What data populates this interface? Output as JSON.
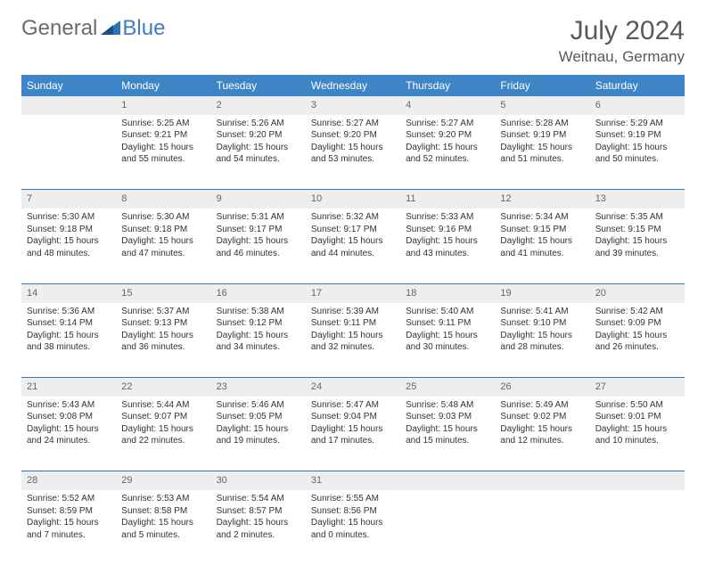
{
  "brand": {
    "part1": "General",
    "part2": "Blue"
  },
  "title": "July 2024",
  "location": "Weitnau, Germany",
  "colors": {
    "header_bg": "#3d85c6",
    "header_fg": "#ffffff",
    "daynum_bg": "#eeeeee",
    "row_divider": "#2e75b6",
    "text": "#333333",
    "muted": "#595959"
  },
  "weekdays": [
    "Sunday",
    "Monday",
    "Tuesday",
    "Wednesday",
    "Thursday",
    "Friday",
    "Saturday"
  ],
  "weeks": [
    {
      "nums": [
        "",
        "1",
        "2",
        "3",
        "4",
        "5",
        "6"
      ],
      "cells": [
        null,
        {
          "sr": "Sunrise: 5:25 AM",
          "ss": "Sunset: 9:21 PM",
          "d1": "Daylight: 15 hours",
          "d2": "and 55 minutes."
        },
        {
          "sr": "Sunrise: 5:26 AM",
          "ss": "Sunset: 9:20 PM",
          "d1": "Daylight: 15 hours",
          "d2": "and 54 minutes."
        },
        {
          "sr": "Sunrise: 5:27 AM",
          "ss": "Sunset: 9:20 PM",
          "d1": "Daylight: 15 hours",
          "d2": "and 53 minutes."
        },
        {
          "sr": "Sunrise: 5:27 AM",
          "ss": "Sunset: 9:20 PM",
          "d1": "Daylight: 15 hours",
          "d2": "and 52 minutes."
        },
        {
          "sr": "Sunrise: 5:28 AM",
          "ss": "Sunset: 9:19 PM",
          "d1": "Daylight: 15 hours",
          "d2": "and 51 minutes."
        },
        {
          "sr": "Sunrise: 5:29 AM",
          "ss": "Sunset: 9:19 PM",
          "d1": "Daylight: 15 hours",
          "d2": "and 50 minutes."
        }
      ]
    },
    {
      "nums": [
        "7",
        "8",
        "9",
        "10",
        "11",
        "12",
        "13"
      ],
      "cells": [
        {
          "sr": "Sunrise: 5:30 AM",
          "ss": "Sunset: 9:18 PM",
          "d1": "Daylight: 15 hours",
          "d2": "and 48 minutes."
        },
        {
          "sr": "Sunrise: 5:30 AM",
          "ss": "Sunset: 9:18 PM",
          "d1": "Daylight: 15 hours",
          "d2": "and 47 minutes."
        },
        {
          "sr": "Sunrise: 5:31 AM",
          "ss": "Sunset: 9:17 PM",
          "d1": "Daylight: 15 hours",
          "d2": "and 46 minutes."
        },
        {
          "sr": "Sunrise: 5:32 AM",
          "ss": "Sunset: 9:17 PM",
          "d1": "Daylight: 15 hours",
          "d2": "and 44 minutes."
        },
        {
          "sr": "Sunrise: 5:33 AM",
          "ss": "Sunset: 9:16 PM",
          "d1": "Daylight: 15 hours",
          "d2": "and 43 minutes."
        },
        {
          "sr": "Sunrise: 5:34 AM",
          "ss": "Sunset: 9:15 PM",
          "d1": "Daylight: 15 hours",
          "d2": "and 41 minutes."
        },
        {
          "sr": "Sunrise: 5:35 AM",
          "ss": "Sunset: 9:15 PM",
          "d1": "Daylight: 15 hours",
          "d2": "and 39 minutes."
        }
      ]
    },
    {
      "nums": [
        "14",
        "15",
        "16",
        "17",
        "18",
        "19",
        "20"
      ],
      "cells": [
        {
          "sr": "Sunrise: 5:36 AM",
          "ss": "Sunset: 9:14 PM",
          "d1": "Daylight: 15 hours",
          "d2": "and 38 minutes."
        },
        {
          "sr": "Sunrise: 5:37 AM",
          "ss": "Sunset: 9:13 PM",
          "d1": "Daylight: 15 hours",
          "d2": "and 36 minutes."
        },
        {
          "sr": "Sunrise: 5:38 AM",
          "ss": "Sunset: 9:12 PM",
          "d1": "Daylight: 15 hours",
          "d2": "and 34 minutes."
        },
        {
          "sr": "Sunrise: 5:39 AM",
          "ss": "Sunset: 9:11 PM",
          "d1": "Daylight: 15 hours",
          "d2": "and 32 minutes."
        },
        {
          "sr": "Sunrise: 5:40 AM",
          "ss": "Sunset: 9:11 PM",
          "d1": "Daylight: 15 hours",
          "d2": "and 30 minutes."
        },
        {
          "sr": "Sunrise: 5:41 AM",
          "ss": "Sunset: 9:10 PM",
          "d1": "Daylight: 15 hours",
          "d2": "and 28 minutes."
        },
        {
          "sr": "Sunrise: 5:42 AM",
          "ss": "Sunset: 9:09 PM",
          "d1": "Daylight: 15 hours",
          "d2": "and 26 minutes."
        }
      ]
    },
    {
      "nums": [
        "21",
        "22",
        "23",
        "24",
        "25",
        "26",
        "27"
      ],
      "cells": [
        {
          "sr": "Sunrise: 5:43 AM",
          "ss": "Sunset: 9:08 PM",
          "d1": "Daylight: 15 hours",
          "d2": "and 24 minutes."
        },
        {
          "sr": "Sunrise: 5:44 AM",
          "ss": "Sunset: 9:07 PM",
          "d1": "Daylight: 15 hours",
          "d2": "and 22 minutes."
        },
        {
          "sr": "Sunrise: 5:46 AM",
          "ss": "Sunset: 9:05 PM",
          "d1": "Daylight: 15 hours",
          "d2": "and 19 minutes."
        },
        {
          "sr": "Sunrise: 5:47 AM",
          "ss": "Sunset: 9:04 PM",
          "d1": "Daylight: 15 hours",
          "d2": "and 17 minutes."
        },
        {
          "sr": "Sunrise: 5:48 AM",
          "ss": "Sunset: 9:03 PM",
          "d1": "Daylight: 15 hours",
          "d2": "and 15 minutes."
        },
        {
          "sr": "Sunrise: 5:49 AM",
          "ss": "Sunset: 9:02 PM",
          "d1": "Daylight: 15 hours",
          "d2": "and 12 minutes."
        },
        {
          "sr": "Sunrise: 5:50 AM",
          "ss": "Sunset: 9:01 PM",
          "d1": "Daylight: 15 hours",
          "d2": "and 10 minutes."
        }
      ]
    },
    {
      "nums": [
        "28",
        "29",
        "30",
        "31",
        "",
        "",
        ""
      ],
      "cells": [
        {
          "sr": "Sunrise: 5:52 AM",
          "ss": "Sunset: 8:59 PM",
          "d1": "Daylight: 15 hours",
          "d2": "and 7 minutes."
        },
        {
          "sr": "Sunrise: 5:53 AM",
          "ss": "Sunset: 8:58 PM",
          "d1": "Daylight: 15 hours",
          "d2": "and 5 minutes."
        },
        {
          "sr": "Sunrise: 5:54 AM",
          "ss": "Sunset: 8:57 PM",
          "d1": "Daylight: 15 hours",
          "d2": "and 2 minutes."
        },
        {
          "sr": "Sunrise: 5:55 AM",
          "ss": "Sunset: 8:56 PM",
          "d1": "Daylight: 15 hours",
          "d2": "and 0 minutes."
        },
        null,
        null,
        null
      ]
    }
  ]
}
